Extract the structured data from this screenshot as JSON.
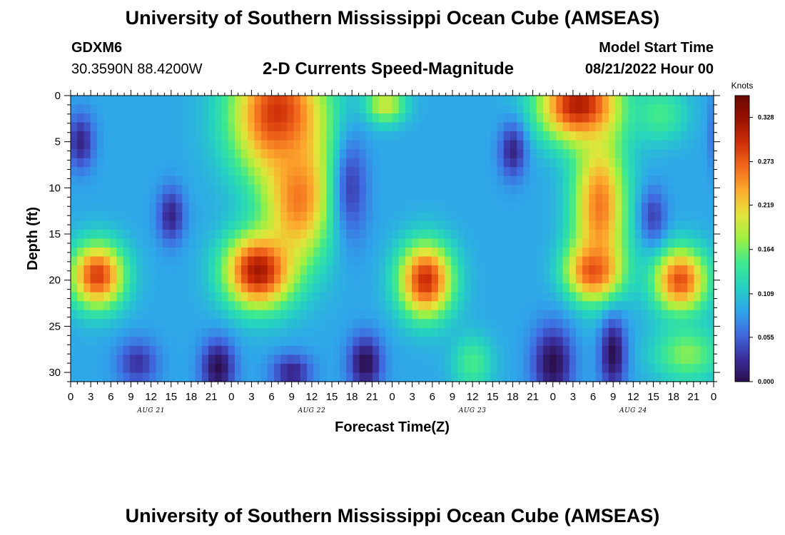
{
  "header": {
    "title": "University of Southern Mississippi Ocean Cube (AMSEAS)",
    "station": "GDXM6",
    "coordinates": "30.3590N  88.4200W",
    "subtitle": "2-D Currents Speed-Magnitude",
    "start_label": "Model Start Time",
    "start_value": "08/21/2022 Hour 00"
  },
  "footer": {
    "title": "University of Southern Mississippi Ocean Cube (AMSEAS)"
  },
  "chart_data": {
    "type": "heatmap",
    "title": "2-D Currents Speed-Magnitude",
    "xlabel": "Forecast Time(Z)",
    "ylabel": "Depth (ft)",
    "x_hours_range": [
      0,
      96
    ],
    "x_tick_step_hours": 3,
    "x_tick_labels": [
      "0",
      "3",
      "6",
      "9",
      "12",
      "15",
      "18",
      "21",
      "0",
      "3",
      "6",
      "9",
      "12",
      "15",
      "18",
      "21",
      "0",
      "3",
      "6",
      "9",
      "12",
      "15",
      "18",
      "21",
      "0",
      "3",
      "6",
      "9",
      "12",
      "15",
      "18",
      "21",
      "0"
    ],
    "date_labels": [
      {
        "text": "AUG 21",
        "hour": 12
      },
      {
        "text": "AUG 22",
        "hour": 36
      },
      {
        "text": "AUG 23",
        "hour": 60
      },
      {
        "text": "AUG 24",
        "hour": 84
      }
    ],
    "y_range_ft": [
      0,
      31
    ],
    "y_ticks": [
      0,
      5,
      10,
      15,
      20,
      25,
      30
    ],
    "y_tick_labels": [
      "0",
      "5",
      "10",
      "15",
      "20",
      "25",
      "30"
    ],
    "colorbar": {
      "unit": "Knots",
      "range": [
        0,
        0.355
      ],
      "ticks": [
        0.0,
        0.055,
        0.109,
        0.164,
        0.219,
        0.273,
        0.328
      ],
      "tick_labels": [
        "0.000",
        "0.055",
        "0.109",
        "0.164",
        "0.219",
        "0.273",
        "0.328"
      ],
      "colormap": [
        "#2b0f4d",
        "#3b2f9e",
        "#3f6be0",
        "#2fa6ea",
        "#25d3c0",
        "#3fe98e",
        "#9ef042",
        "#e3e43a",
        "#fcab2e",
        "#f26a1c",
        "#cf3008",
        "#991200",
        "#6a0800"
      ]
    },
    "field_features_knots": [
      {
        "name": "surface-core-day1",
        "hour": 31,
        "depth": 2,
        "hour_spread": 7,
        "depth_spread": 7,
        "value": 0.3
      },
      {
        "name": "mid-core-day1",
        "hour": 34,
        "depth": 11,
        "hour_spread": 5,
        "depth_spread": 7,
        "value": 0.26
      },
      {
        "name": "deep-core-day1",
        "hour": 28,
        "depth": 19,
        "hour_spread": 5,
        "depth_spread": 4,
        "value": 0.32
      },
      {
        "name": "deep-core-day0",
        "hour": 4,
        "depth": 19.5,
        "hour_spread": 4,
        "depth_spread": 3.5,
        "value": 0.29
      },
      {
        "name": "deep-core-day2",
        "hour": 53,
        "depth": 20,
        "hour_spread": 4,
        "depth_spread": 4,
        "value": 0.3
      },
      {
        "name": "surface-core-day3",
        "hour": 76,
        "depth": 1,
        "hour_spread": 6,
        "depth_spread": 4,
        "value": 0.32
      },
      {
        "name": "mid-core-day3",
        "hour": 79,
        "depth": 12,
        "hour_spread": 4,
        "depth_spread": 8,
        "value": 0.26
      },
      {
        "name": "deep-core-day3",
        "hour": 78,
        "depth": 19,
        "hour_spread": 4,
        "depth_spread": 3,
        "value": 0.28
      },
      {
        "name": "deep-core-day4",
        "hour": 91,
        "depth": 20,
        "hour_spread": 4,
        "depth_spread": 3.5,
        "value": 0.28
      },
      {
        "name": "surface-patch-day2",
        "hour": 47,
        "depth": 1,
        "hour_spread": 3,
        "depth_spread": 2,
        "value": 0.2
      },
      {
        "name": "low-column-03",
        "hour": 1.5,
        "depth": 5,
        "hour_spread": 2,
        "depth_spread": 3,
        "value": 0.02
      },
      {
        "name": "low-column-15",
        "hour": 15,
        "depth": 13,
        "hour_spread": 2,
        "depth_spread": 3,
        "value": 0.02
      },
      {
        "name": "low-column-42",
        "hour": 42,
        "depth": 10,
        "hour_spread": 2.5,
        "depth_spread": 6,
        "value": 0.04
      },
      {
        "name": "low-column-66",
        "hour": 66,
        "depth": 6,
        "hour_spread": 2,
        "depth_spread": 3,
        "value": 0.02
      },
      {
        "name": "low-column-87",
        "hour": 87,
        "depth": 13,
        "hour_spread": 2,
        "depth_spread": 3,
        "value": 0.04
      },
      {
        "name": "low-deep-22",
        "hour": 22,
        "depth": 29.5,
        "hour_spread": 2.5,
        "depth_spread": 3,
        "value": 0.0
      },
      {
        "name": "low-deep-33",
        "hour": 33,
        "depth": 30,
        "hour_spread": 3,
        "depth_spread": 2,
        "value": 0.02
      },
      {
        "name": "low-deep-44",
        "hour": 44,
        "depth": 29,
        "hour_spread": 2.5,
        "depth_spread": 3,
        "value": 0.0
      },
      {
        "name": "low-deep-72",
        "hour": 72,
        "depth": 29,
        "hour_spread": 3,
        "depth_spread": 4,
        "value": 0.0
      },
      {
        "name": "low-deep-81",
        "hour": 81,
        "depth": 28,
        "hour_spread": 2,
        "depth_spread": 4,
        "value": 0.0
      },
      {
        "name": "low-deep-10",
        "hour": 10,
        "depth": 29,
        "hour_spread": 3,
        "depth_spread": 2.5,
        "value": 0.03
      },
      {
        "name": "shallow-low-97",
        "hour": 97,
        "depth": 4,
        "hour_spread": 1.5,
        "depth_spread": 4,
        "value": 0.03
      },
      {
        "name": "deep-warm-60",
        "hour": 60,
        "depth": 29,
        "hour_spread": 3,
        "depth_spread": 3,
        "value": 0.15
      },
      {
        "name": "deep-warm-92",
        "hour": 92,
        "depth": 28,
        "hour_spread": 5,
        "depth_spread": 3,
        "value": 0.17
      },
      {
        "name": "surface-warm-87",
        "hour": 88,
        "depth": 2,
        "hour_spread": 4,
        "depth_spread": 3,
        "value": 0.15
      }
    ],
    "background_knots": 0.09
  }
}
